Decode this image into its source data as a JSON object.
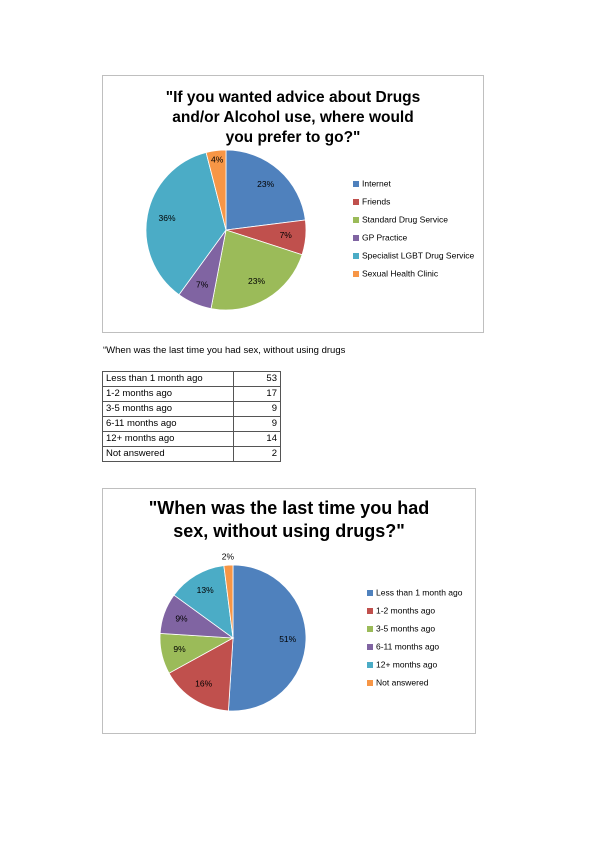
{
  "chart_data": [
    {
      "type": "pie",
      "title": "\"If you wanted advice about Drugs and/or Alcohol use, where would you prefer to go?\"",
      "categories": [
        "Internet",
        "Friends",
        "Standard Drug Service",
        "GP Practice",
        "Specialist LGBT Drug Service",
        "Sexual Health Clinic"
      ],
      "values": [
        23,
        7,
        23,
        7,
        36,
        4
      ],
      "value_labels": [
        "23%",
        "7%",
        "23%",
        "7%",
        "36%",
        "4%"
      ],
      "colors": [
        "#4f81bd",
        "#c0504d",
        "#9bbb59",
        "#8064a2",
        "#4bacc6",
        "#f79646"
      ],
      "legend": "right"
    },
    {
      "type": "pie",
      "title": "\"When was the last time you had sex, without using drugs?\"",
      "categories": [
        "Less than 1 month ago",
        "1-2 months ago",
        "3-5 months ago",
        "6-11 months ago",
        "12+ months ago",
        "Not answered"
      ],
      "values": [
        51,
        16,
        9,
        9,
        13,
        2
      ],
      "value_labels": [
        "51%",
        "16%",
        "9%",
        "9%",
        "13%",
        "2%"
      ],
      "colors": [
        "#4f81bd",
        "#c0504d",
        "#9bbb59",
        "#8064a2",
        "#4bacc6",
        "#f79646"
      ],
      "legend": "right"
    }
  ],
  "caption": "“When was the last time you had sex, without using drugs",
  "table": {
    "rows": [
      [
        "Less than 1 month ago",
        "53"
      ],
      [
        "1-2 months ago",
        "17"
      ],
      [
        "3-5 months ago",
        "9"
      ],
      [
        "6-11 months ago",
        "9"
      ],
      [
        "12+ months ago",
        "14"
      ],
      [
        "Not answered",
        "2"
      ]
    ]
  }
}
